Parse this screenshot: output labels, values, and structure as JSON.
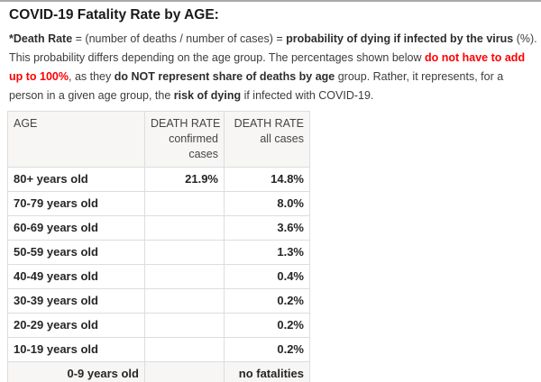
{
  "page": {
    "title": "COVID-19 Fatality Rate by AGE:"
  },
  "intro": {
    "lines": [
      [
        {
          "t": "*Death Rate",
          "b": true
        },
        {
          "t": " = (number of deaths / number of cases) = "
        },
        {
          "t": "probability of dying if infected by the virus",
          "b": true
        },
        {
          "t": " (%)."
        }
      ],
      [
        {
          "t": "This probability differs depending on the age group. The percentages shown below "
        },
        {
          "t": "do not have to add",
          "b": true,
          "red": true
        }
      ],
      [
        {
          "t": "up to 100%",
          "b": true,
          "red": true
        },
        {
          "t": ", as they "
        },
        {
          "t": "do NOT represent share of deaths by age",
          "b": true
        },
        {
          "t": " group. Rather, it represents, for a"
        }
      ],
      [
        {
          "t": "person in a given age group, the "
        },
        {
          "t": "risk of dying",
          "b": true
        },
        {
          "t": " if infected with COVID-19."
        }
      ]
    ]
  },
  "table": {
    "headers": [
      {
        "lines": [
          "AGE"
        ],
        "align": "left"
      },
      {
        "lines": [
          "DEATH RATE",
          "confirmed",
          "cases"
        ],
        "align": "right"
      },
      {
        "lines": [
          "DEATH RATE",
          "all cases"
        ],
        "align": "right"
      }
    ],
    "rows": [
      {
        "age": "80+ years old",
        "confirmed": "21.9%",
        "all": "14.8%"
      },
      {
        "age": "70-79 years old",
        "confirmed": "",
        "all": "8.0%"
      },
      {
        "age": "60-69 years old",
        "confirmed": "",
        "all": "3.6%"
      },
      {
        "age": "50-59 years old",
        "confirmed": "",
        "all": "1.3%"
      },
      {
        "age": "40-49 years old",
        "confirmed": "",
        "all": "0.4%"
      },
      {
        "age": "30-39 years old",
        "confirmed": "",
        "all": "0.2%"
      },
      {
        "age": "20-29 years old",
        "confirmed": "",
        "all": "0.2%"
      },
      {
        "age": "10-19 years old",
        "confirmed": "",
        "all": "0.2%"
      },
      {
        "age": "0-9 years old",
        "confirmed": "",
        "all": "no fatalities",
        "age_align": "right",
        "shaded": true
      }
    ]
  },
  "colors": {
    "red_text": "#ff0000",
    "table_border": "#dddddd",
    "shaded_bg": "#f7f6f5",
    "top_rule": "#a9a9a9",
    "body_text": "#3c3c3c",
    "data_text": "#262626"
  }
}
